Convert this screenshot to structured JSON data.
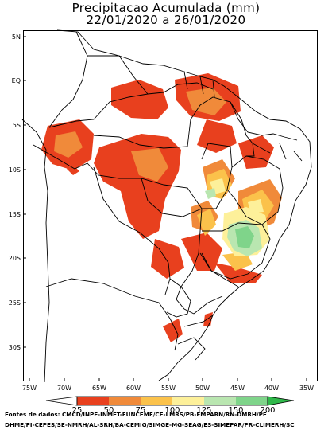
{
  "title": {
    "line1": "Precipitacao Acumulada (mm)",
    "line2": "22/01/2020 a 26/01/2020"
  },
  "lat_labels": [
    "5N",
    "EQ",
    "5S",
    "10S",
    "15S",
    "20S",
    "25S",
    "30S"
  ],
  "lon_labels": [
    "75W",
    "70W",
    "65W",
    "60W",
    "55W",
    "50W",
    "45W",
    "40W",
    "35W"
  ],
  "colorbar": {
    "ticks": [
      "25",
      "50",
      "75",
      "100",
      "125",
      "150",
      "200"
    ],
    "colors": [
      "#e8401e",
      "#f08a3a",
      "#fbc24b",
      "#fdf09a",
      "#b9e6b0",
      "#7fd48a",
      "#2fb84a"
    ]
  },
  "sources": {
    "line1": "Fontes de dados: CMCD/INPE-INMET-FUNCEME/CE-LMRS/PB-EMPARN/RN-DMRH/PE",
    "line2": "DHME/PI-CEPES/SE-NMRH/AL-SRH/BA-CEMIG/SIMGE-MG-SEAG/ES-SIMEPAR/PR-CLIMERH/SC"
  }
}
